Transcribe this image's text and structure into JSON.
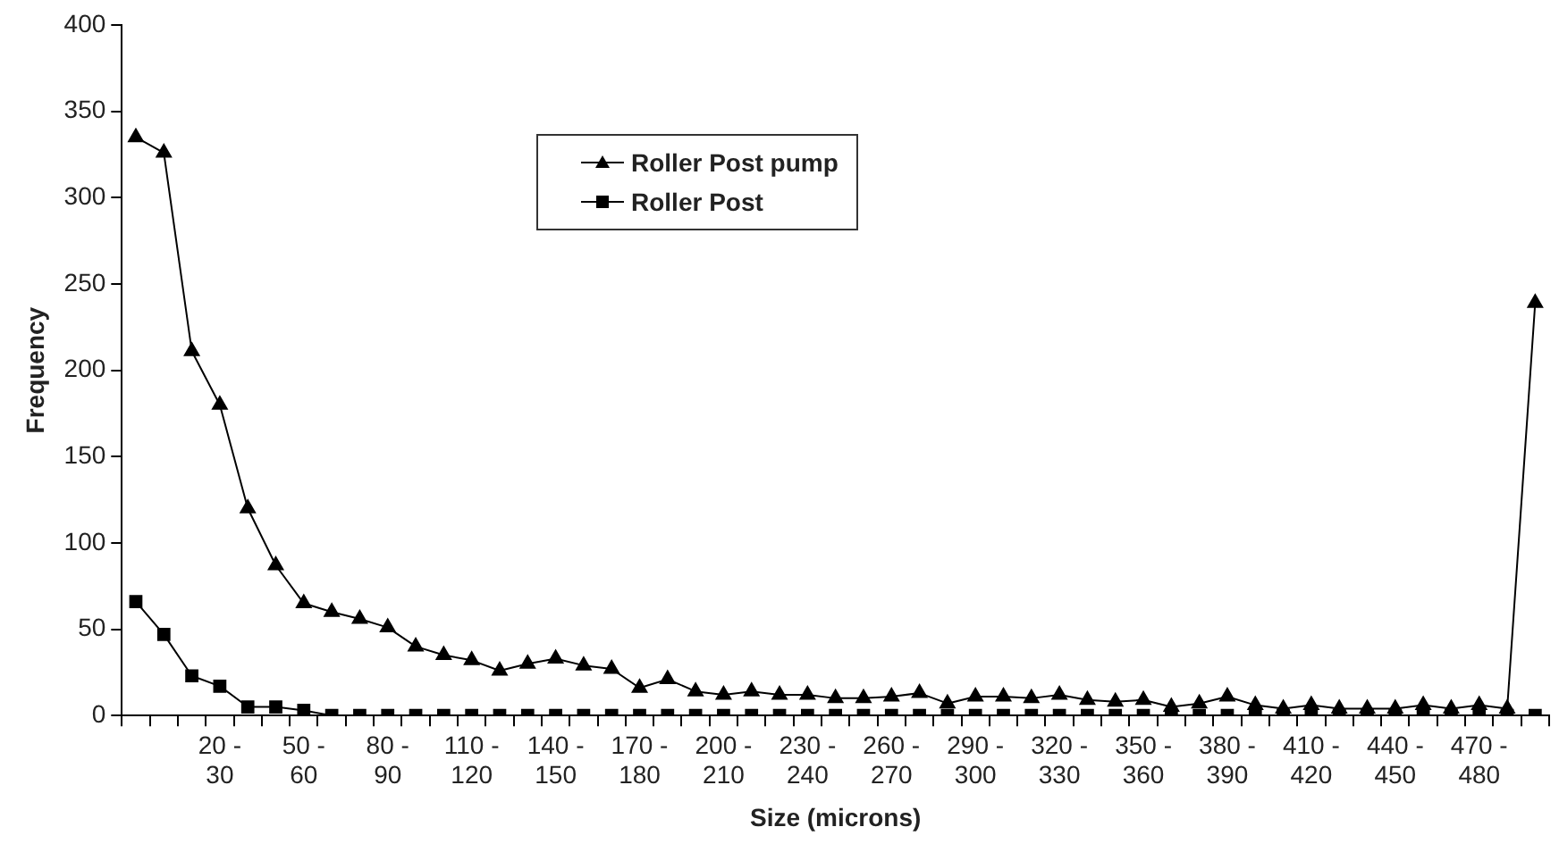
{
  "chart_data": {
    "type": "line",
    "xlabel": "Size (microns)",
    "ylabel": "Frequency",
    "categories": [
      null,
      null,
      null,
      "20 - 30",
      null,
      null,
      "50 - 60",
      null,
      null,
      "80 - 90",
      null,
      null,
      "110 - 120",
      null,
      null,
      "140 - 150",
      null,
      null,
      "170 - 180",
      null,
      null,
      "200 - 210",
      null,
      null,
      "230 - 240",
      null,
      null,
      "260 - 270",
      null,
      null,
      "290 - 300",
      null,
      null,
      "320 - 330",
      null,
      null,
      "350 - 360",
      null,
      null,
      "380 - 390",
      null,
      null,
      "410 - 420",
      null,
      null,
      "440 - 450",
      null,
      null,
      "470 - 480",
      null,
      null
    ],
    "series": [
      {
        "name": "Roller Post pump",
        "color": "#000000",
        "marker": "triangle",
        "values": [
          335,
          326,
          211,
          180,
          120,
          87,
          65,
          60,
          56,
          51,
          40,
          35,
          32,
          26,
          30,
          33,
          29,
          27,
          16,
          21,
          14,
          12,
          14,
          12,
          12,
          10,
          10,
          11,
          13,
          7,
          11,
          11,
          10,
          12,
          9,
          8,
          9,
          5,
          7,
          11,
          6,
          4,
          6,
          4,
          4,
          4,
          6,
          4,
          6,
          4,
          239
        ]
      },
      {
        "name": "Roller Post",
        "color": "#000000",
        "marker": "square",
        "values": [
          66,
          47,
          23,
          17,
          5,
          5,
          3,
          0,
          0,
          0,
          0,
          0,
          0,
          0,
          0,
          0,
          0,
          0,
          0,
          0,
          0,
          0,
          0,
          0,
          0,
          0,
          0,
          0,
          0,
          0,
          0,
          0,
          0,
          0,
          0,
          0,
          0,
          0,
          0,
          0,
          0,
          0,
          0,
          0,
          0,
          0,
          0,
          0,
          0,
          0,
          0
        ]
      }
    ],
    "ylim": [
      0,
      400
    ],
    "yticks": [
      0,
      50,
      100,
      150,
      200,
      250,
      300,
      350,
      400
    ],
    "grid": false,
    "legend": "top",
    "line_style": "solid"
  }
}
